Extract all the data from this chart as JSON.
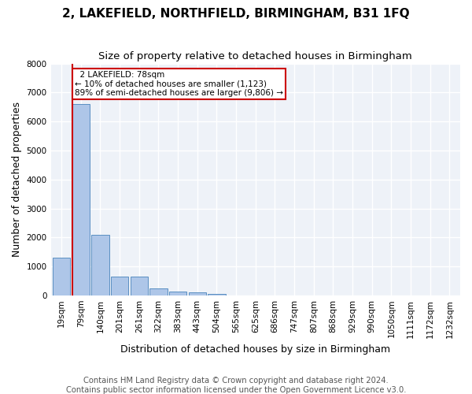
{
  "title": "2, LAKEFIELD, NORTHFIELD, BIRMINGHAM, B31 1FQ",
  "subtitle": "Size of property relative to detached houses in Birmingham",
  "xlabel": "Distribution of detached houses by size in Birmingham",
  "ylabel": "Number of detached properties",
  "annotation_line1": "2 LAKEFIELD: 78sqm",
  "annotation_line2": "← 10% of detached houses are smaller (1,123)",
  "annotation_line3": "89% of semi-detached houses are larger (9,806) →",
  "footer_line1": "Contains HM Land Registry data © Crown copyright and database right 2024.",
  "footer_line2": "Contains public sector information licensed under the Open Government Licence v3.0.",
  "bar_color": "#aec6e8",
  "bar_edge_color": "#5a8fc2",
  "vline_color": "#cc0000",
  "annotation_box_edgecolor": "#cc0000",
  "background_color": "#eef2f8",
  "grid_color": "#ffffff",
  "ylim": [
    0,
    8000
  ],
  "yticks": [
    0,
    1000,
    2000,
    3000,
    4000,
    5000,
    6000,
    7000,
    8000
  ],
  "bin_labels": [
    "19sqm",
    "79sqm",
    "140sqm",
    "201sqm",
    "261sqm",
    "322sqm",
    "383sqm",
    "443sqm",
    "504sqm",
    "565sqm",
    "625sqm",
    "686sqm",
    "747sqm",
    "807sqm",
    "868sqm",
    "929sqm",
    "990sqm",
    "1050sqm",
    "1111sqm",
    "1172sqm",
    "1232sqm"
  ],
  "bar_values": [
    1300,
    6600,
    2080,
    640,
    640,
    245,
    130,
    100,
    55,
    0,
    0,
    0,
    0,
    0,
    0,
    0,
    0,
    0,
    0,
    0,
    0
  ],
  "title_fontsize": 11,
  "subtitle_fontsize": 9.5,
  "axis_label_fontsize": 9,
  "tick_fontsize": 7.5,
  "footer_fontsize": 7.2
}
